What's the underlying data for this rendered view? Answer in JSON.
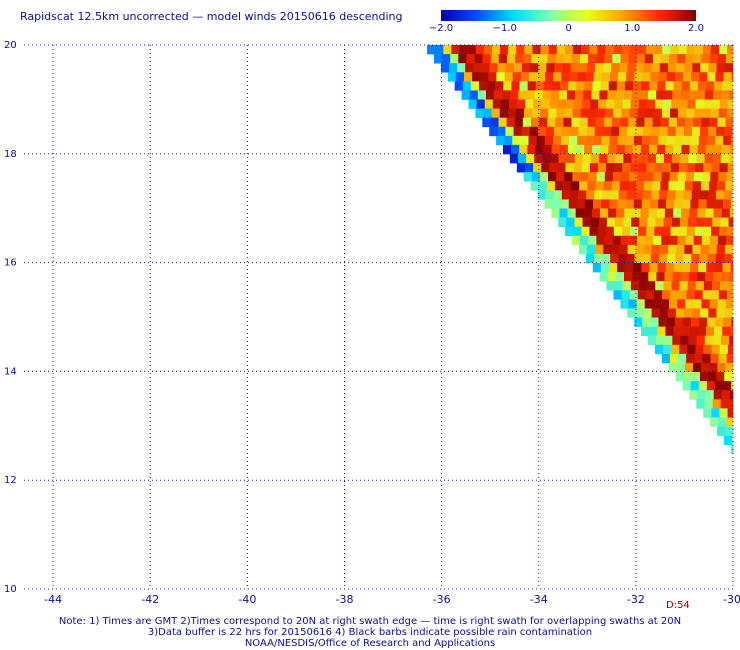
{
  "title": "Rapidscat 12.5km uncorrected — model winds 20150616 descending",
  "colorbar": {
    "ticks": [
      {
        "value": -2.0,
        "label": "−2.0"
      },
      {
        "value": -1.0,
        "label": "−1.0"
      },
      {
        "value": 0,
        "label": "0"
      },
      {
        "value": 1.0,
        "label": "1.0"
      },
      {
        "value": 2.0,
        "label": "2.0"
      }
    ],
    "range": [
      -2.0,
      2.0
    ],
    "colors": [
      "#0000b0",
      "#0050ff",
      "#00dcff",
      "#7fffb0",
      "#e8ff20",
      "#ffa000",
      "#ff2800",
      "#800000"
    ]
  },
  "time_label": "D:54",
  "footnotes": {
    "line1": "Note: 1) Times are GMT 2)Times correspond to 20N at right swath edge — time is right swath for overlapping swaths at 20N",
    "line2": "3)Data buffer is 22 hrs for 20150616 4) Black barbs indicate possible rain contamination",
    "line3": "NOAA/NESDIS/Office of Research and Applications"
  },
  "chart_data": {
    "type": "heatmap",
    "title": "Rapidscat 12.5km uncorrected — model winds 20150616 descending",
    "xlim": [
      -44.6,
      -30.0
    ],
    "ylim": [
      10.0,
      20.0
    ],
    "x_ticks": [
      {
        "value": -44,
        "label": "-44"
      },
      {
        "value": -42,
        "label": "-42"
      },
      {
        "value": -40,
        "label": "-40"
      },
      {
        "value": -38,
        "label": "-38"
      },
      {
        "value": -36,
        "label": "-36"
      },
      {
        "value": -34,
        "label": "-34"
      },
      {
        "value": -32,
        "label": "-32"
      },
      {
        "value": -30,
        "label": "-30"
      }
    ],
    "y_ticks": [
      {
        "value": 10,
        "label": "10"
      },
      {
        "value": 12,
        "label": "12"
      },
      {
        "value": 14,
        "label": "14"
      },
      {
        "value": 16,
        "label": "16"
      },
      {
        "value": 18,
        "label": "18"
      },
      {
        "value": 20,
        "label": "20"
      }
    ],
    "grid": true,
    "color_scale_range": [
      -2.0,
      2.0
    ],
    "swath": {
      "lat_top": 20.0,
      "lat_bottom": 12.6,
      "lon_left_at_top": -36.3,
      "lon_left_at_bottom": -30.0,
      "lon_right": -30.0
    },
    "cell_size_deg": 0.167,
    "value_pattern": "swath left edge about -1 to -2 (blue/cyan); diagonal band near left edge 1.7 to 2.0 (dark red); interior mostly 0.5 to 1.5 (yellow/orange); scattered cells near 0"
  }
}
